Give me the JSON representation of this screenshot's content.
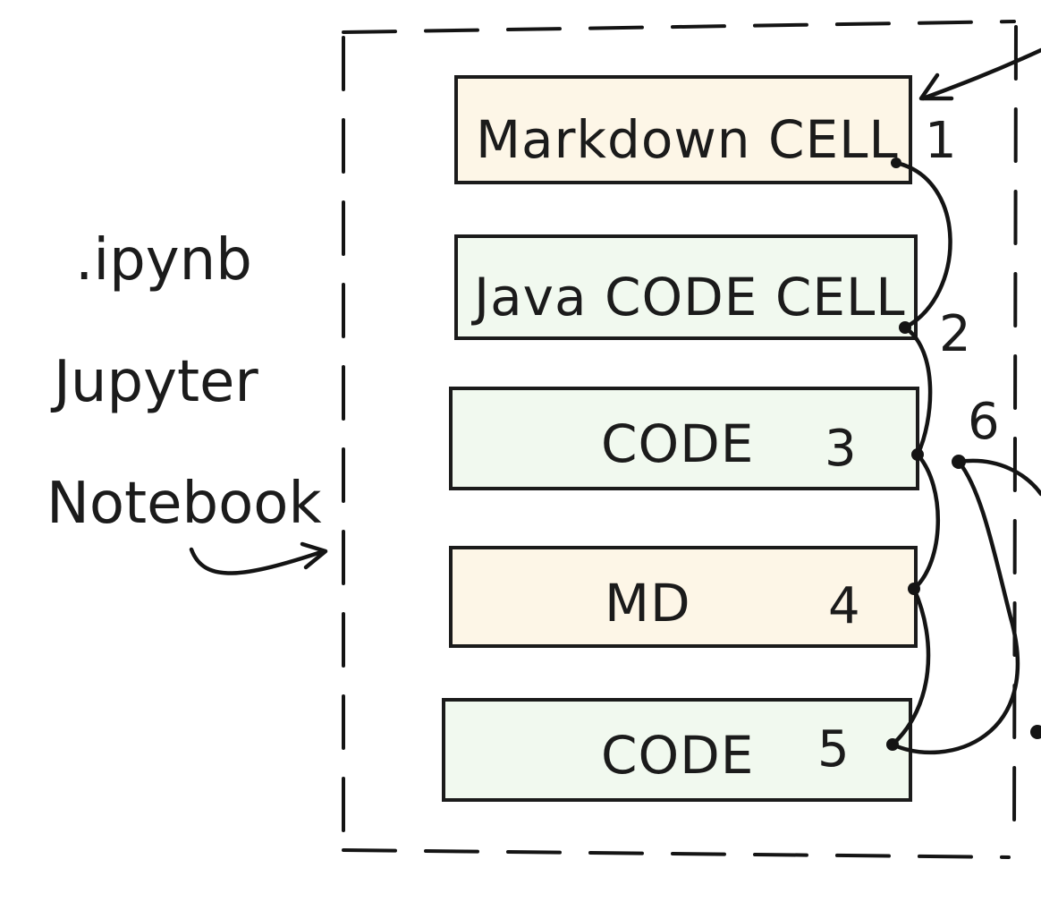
{
  "side_labels": [
    ".ipynb",
    "Jupyter",
    "Notebook"
  ],
  "cells": [
    {
      "label": "Markdown CELL",
      "kind": "markdown",
      "step": "1"
    },
    {
      "label": "Java CODE CELL",
      "kind": "code",
      "step": "2"
    },
    {
      "label": "CODE",
      "kind": "code",
      "step": "3"
    },
    {
      "label": "MD",
      "kind": "markdown",
      "step": "4"
    },
    {
      "label": "CODE",
      "kind": "code",
      "step": "5"
    }
  ],
  "extra_step": "6",
  "colors": {
    "markdown_fill": "#fdf6e7",
    "code_fill": "#f1f9ef",
    "ink": "#141414"
  }
}
